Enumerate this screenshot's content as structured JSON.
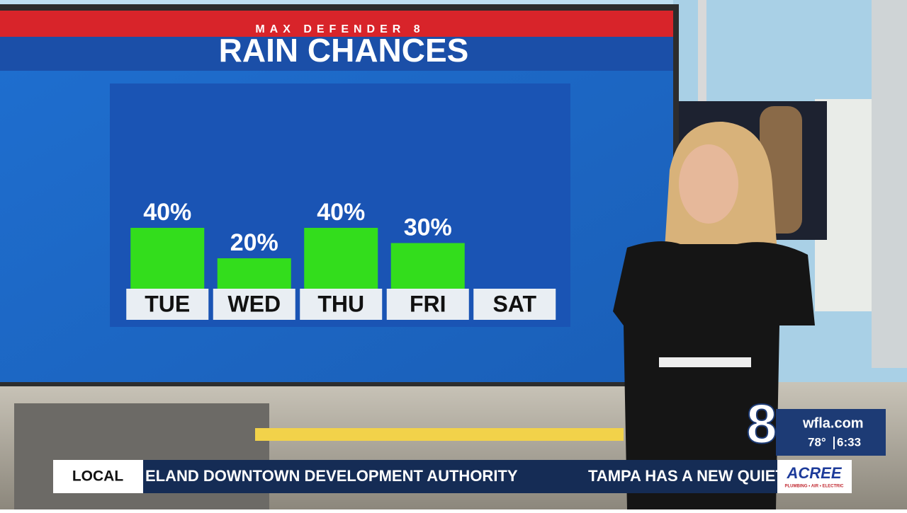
{
  "chart_data": {
    "type": "bar",
    "supertitle": "MAX DEFENDER 8",
    "title": "RAIN CHANCES",
    "categories": [
      "TUE",
      "WED",
      "THU",
      "FRI",
      "SAT"
    ],
    "values": [
      40,
      20,
      40,
      30,
      null
    ],
    "value_labels": [
      "40%",
      "20%",
      "40%",
      "30%",
      null
    ],
    "color": "#33dd1c"
  },
  "lower_third": {
    "section": "LOCAL",
    "ticker": [
      "ELAND DOWNTOWN DEVELOPMENT AUTHORITY",
      "TAMPA HAS A NEW QUIET"
    ],
    "station_logo": "8",
    "website": "wfla.com",
    "temperature": "78°",
    "time": "6:33",
    "sponsor": "ACREE",
    "sponsor_tagline": "PLUMBING • AIR • ELECTRIC"
  }
}
